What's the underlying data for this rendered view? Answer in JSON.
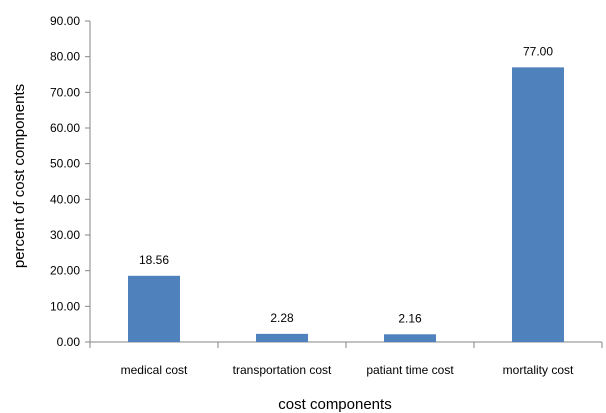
{
  "chart_data": {
    "type": "bar",
    "title": "",
    "xlabel": "cost components",
    "ylabel": "percent of cost components",
    "categories": [
      "medical cost",
      "transportation cost",
      "patiant time cost",
      "mortality cost"
    ],
    "values": [
      18.56,
      2.28,
      2.16,
      77.0
    ],
    "value_labels": [
      "18.56",
      "2.28",
      "2.16",
      "77.00"
    ],
    "ylim": [
      0,
      90
    ],
    "yticks": [
      0,
      10,
      20,
      30,
      40,
      50,
      60,
      70,
      80,
      90
    ],
    "ytick_labels": [
      "0.00",
      "10.00",
      "20.00",
      "30.00",
      "40.00",
      "50.00",
      "60.00",
      "70.00",
      "80.00",
      "90.00"
    ],
    "grid": false,
    "legend": "none",
    "colors": {
      "bar": "#4f81bd",
      "axis": "#868686"
    }
  }
}
